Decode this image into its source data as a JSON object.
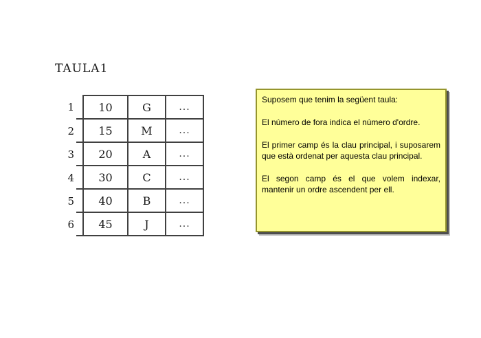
{
  "title": "TAULA1",
  "table": {
    "rows": [
      {
        "index": "1",
        "key": "10",
        "value": "G",
        "more": "..."
      },
      {
        "index": "2",
        "key": "15",
        "value": "M",
        "more": "..."
      },
      {
        "index": "3",
        "key": "20",
        "value": "A",
        "more": "..."
      },
      {
        "index": "4",
        "key": "30",
        "value": "C",
        "more": "..."
      },
      {
        "index": "5",
        "key": "40",
        "value": "B",
        "more": "..."
      },
      {
        "index": "6",
        "key": "45",
        "value": "J",
        "more": "..."
      }
    ]
  },
  "note": {
    "paragraphs": [
      "Suposem que tenim la següent taula:",
      "El número de fora indica el número d'ordre.",
      "El primer camp és la clau principal, i suposarem que està ordenat per aquesta clau principal.",
      "El segon camp és el que volem indexar, mantenir un ordre ascendent per ell."
    ],
    "colors": {
      "background": "#ffff99",
      "border": "#95952d",
      "shadow": "#4d4d4d"
    }
  },
  "colors": {
    "page_background": "#ffffff",
    "table_line": "#404040",
    "text": "#000000"
  }
}
